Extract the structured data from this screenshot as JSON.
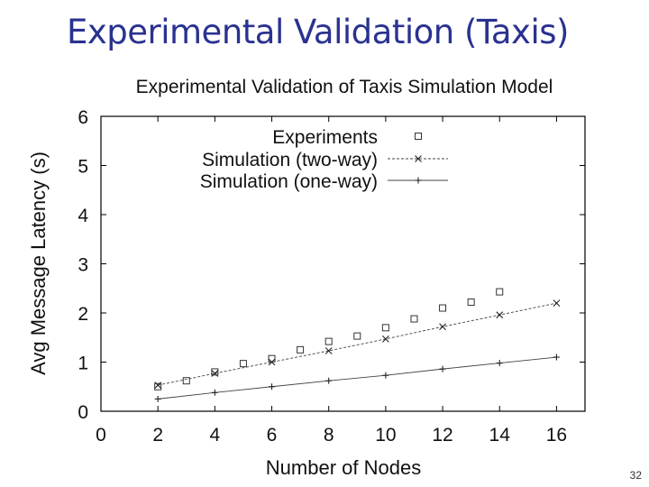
{
  "slide": {
    "title": "Experimental Validation (Taxis)",
    "page_number": "32",
    "title_color": "#2a3290"
  },
  "chart_data": {
    "type": "scatter",
    "title": "Experimental Validation of Taxis Simulation Model",
    "xlabel": "Number of Nodes",
    "ylabel": "Avg Message Latency (s)",
    "xlim": [
      0,
      17
    ],
    "ylim": [
      0,
      6
    ],
    "xticks": [
      0,
      2,
      4,
      6,
      8,
      10,
      12,
      14,
      16
    ],
    "yticks": [
      0,
      1,
      2,
      3,
      4,
      5,
      6
    ],
    "grid": false,
    "legend_position": "top-right",
    "series": [
      {
        "name": "Experiments",
        "marker": "square",
        "line": "none",
        "x": [
          2,
          3,
          4,
          5,
          6,
          7,
          8,
          9,
          10,
          11,
          12,
          13,
          14
        ],
        "y": [
          0.5,
          0.62,
          0.8,
          0.97,
          1.07,
          1.25,
          1.42,
          1.53,
          1.7,
          1.88,
          2.1,
          2.22,
          2.43
        ]
      },
      {
        "name": "Simulation (two-way)",
        "marker": "x",
        "line": "dashed",
        "x": [
          2,
          4,
          6,
          8,
          10,
          12,
          14,
          16
        ],
        "y": [
          0.53,
          0.77,
          1.0,
          1.23,
          1.47,
          1.72,
          1.96,
          2.2
        ]
      },
      {
        "name": "Simulation (one-way)",
        "marker": "plus",
        "line": "solid",
        "x": [
          2,
          4,
          6,
          8,
          10,
          12,
          14,
          16
        ],
        "y": [
          0.25,
          0.38,
          0.5,
          0.62,
          0.73,
          0.86,
          0.98,
          1.1
        ]
      }
    ]
  }
}
